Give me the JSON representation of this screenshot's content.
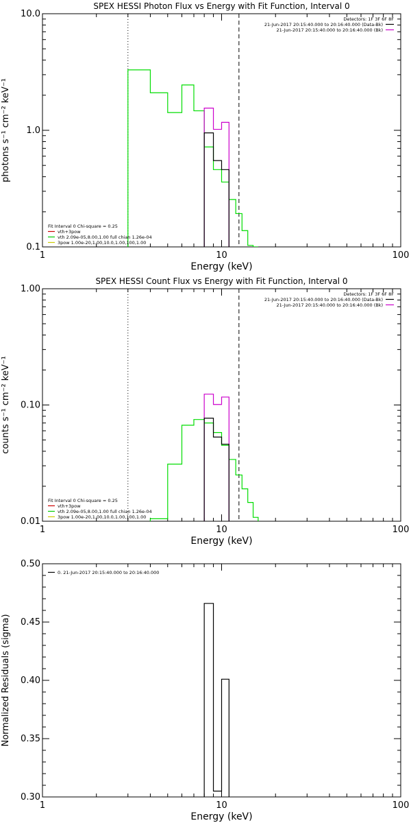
{
  "chart_data": [
    {
      "type": "line",
      "title": "SPEX HESSI Photon Flux vs Energy with Fit Function, Interval 0",
      "xlabel": "Energy (keV)",
      "ylabel": "photons s⁻¹ cm⁻² keV⁻¹",
      "x_scale": "log",
      "y_scale": "log",
      "xlim": [
        1,
        100
      ],
      "ylim": [
        0.1,
        10.0
      ],
      "x_tick_labels": [
        "1",
        "10",
        "100"
      ],
      "y_tick_labels": [
        "0.1",
        "1.0",
        "10.0"
      ],
      "vlines": [
        {
          "x": 3.0,
          "style": "dotted"
        },
        {
          "x": 12.5,
          "style": "dashed"
        }
      ],
      "legend_right": {
        "header": "Detectors: 1F 3F 6F 8F",
        "entries": [
          {
            "text": "21-Jun-2017 20:15:40.000 to 20:16:40.000 (Data-Bk)",
            "color": "#000000"
          },
          {
            "text": "21-Jun-2017 20:15:40.000 to 20:16:40.000 (Bk)",
            "color": "#cc00cc"
          }
        ]
      },
      "legend_left": {
        "header": "Fit Interval  0    Chi-square = 0.25",
        "entries": [
          {
            "text": "vth+3pow",
            "color": "#cc0000"
          },
          {
            "text": "vth 2.09e-05,8.00,1.00  full chian 1.26e-04",
            "color": "#00cc00"
          },
          {
            "text": "3pow 1.00e-20,1.00,10.0,1.00,100,1.00",
            "color": "#cccc00"
          }
        ]
      },
      "series": [
        {
          "color": "#00dd00",
          "edges": [
            3.0,
            4.0,
            5.0,
            6.0,
            7.0,
            8.0,
            9.0,
            10.0,
            11.0,
            12.0,
            13.0,
            14.0,
            15.0,
            16.0
          ],
          "values": [
            3.3,
            2.1,
            1.42,
            2.45,
            1.47,
            0.72,
            0.46,
            0.36,
            0.255,
            0.193,
            0.138,
            0.103,
            0.1
          ]
        },
        {
          "color": "#cc00cc",
          "edges": [
            8.0,
            9.0,
            10.0,
            11.0
          ],
          "values": [
            1.55,
            1.02,
            1.17
          ]
        },
        {
          "color": "#000000",
          "edges": [
            8.0,
            9.0,
            10.0,
            11.0
          ],
          "values": [
            0.95,
            0.55,
            0.46
          ]
        }
      ]
    },
    {
      "type": "line",
      "title": "SPEX HESSI Count Flux vs Energy with Fit Function, Interval 0",
      "xlabel": "Energy (keV)",
      "ylabel": "counts s⁻¹ cm⁻² keV⁻¹",
      "x_scale": "log",
      "y_scale": "log",
      "xlim": [
        1,
        100
      ],
      "ylim": [
        0.01,
        1.0
      ],
      "x_tick_labels": [
        "1",
        "10",
        "100"
      ],
      "y_tick_labels": [
        "0.01",
        "0.10",
        "1.00"
      ],
      "vlines": [
        {
          "x": 3.0,
          "style": "dotted"
        },
        {
          "x": 12.5,
          "style": "dashed"
        }
      ],
      "legend_right": {
        "header": "Detectors: 1F 3F 6F 8F",
        "entries": [
          {
            "text": "21-Jun-2017 20:15:40.000 to 20:16:40.000 (Data-Bk)",
            "color": "#000000"
          },
          {
            "text": "21-Jun-2017 20:15:40.000 to 20:16:40.000 (Bk)",
            "color": "#cc00cc"
          }
        ]
      },
      "legend_left": {
        "header": "Fit Interval  0    Chi-square = 0.25",
        "entries": [
          {
            "text": "vth+3pow",
            "color": "#cc0000"
          },
          {
            "text": "vth 2.09e-05,8.00,1.00  full chian 1.26e-04",
            "color": "#00cc00"
          },
          {
            "text": "3pow 1.00e-20,1.00,10.0,1.00,100,1.00",
            "color": "#cccc00"
          }
        ]
      },
      "series": [
        {
          "color": "#00dd00",
          "edges": [
            4.0,
            5.0,
            6.0,
            7.0,
            8.0,
            9.0,
            10.0,
            11.0,
            12.0,
            13.0,
            14.0,
            15.0,
            16.0
          ],
          "values": [
            0.0105,
            0.031,
            0.067,
            0.075,
            0.07,
            0.058,
            0.045,
            0.034,
            0.025,
            0.019,
            0.0145,
            0.0108
          ]
        },
        {
          "color": "#cc00cc",
          "edges": [
            8.0,
            9.0,
            10.0,
            11.0
          ],
          "values": [
            0.124,
            0.101,
            0.117
          ]
        },
        {
          "color": "#000000",
          "edges": [
            8.0,
            9.0,
            10.0,
            11.0
          ],
          "values": [
            0.077,
            0.053,
            0.046
          ]
        }
      ]
    },
    {
      "type": "line",
      "title": "",
      "xlabel": "Energy (keV)",
      "ylabel": "Normalized Residuals (sigma)",
      "x_scale": "log",
      "y_scale": "linear",
      "xlim": [
        1,
        100
      ],
      "ylim": [
        0.3,
        0.5
      ],
      "x_tick_labels": [
        "1",
        "10",
        "100"
      ],
      "y_ticks": [
        0.3,
        0.35,
        0.4,
        0.45,
        0.5
      ],
      "y_tick_labels": [
        "0.30",
        "0.35",
        "0.40",
        "0.45",
        "0.50"
      ],
      "legend_left": {
        "header": "",
        "entries": [
          {
            "text": "0. 21-Jun-2017 20:15:40.000 to 20:16:40.000",
            "color": "#000000"
          }
        ]
      },
      "series": [
        {
          "color": "#000000",
          "edges": [
            8.0,
            9.0,
            10.0,
            11.0
          ],
          "values": [
            0.466,
            0.305,
            0.401
          ]
        }
      ]
    }
  ]
}
